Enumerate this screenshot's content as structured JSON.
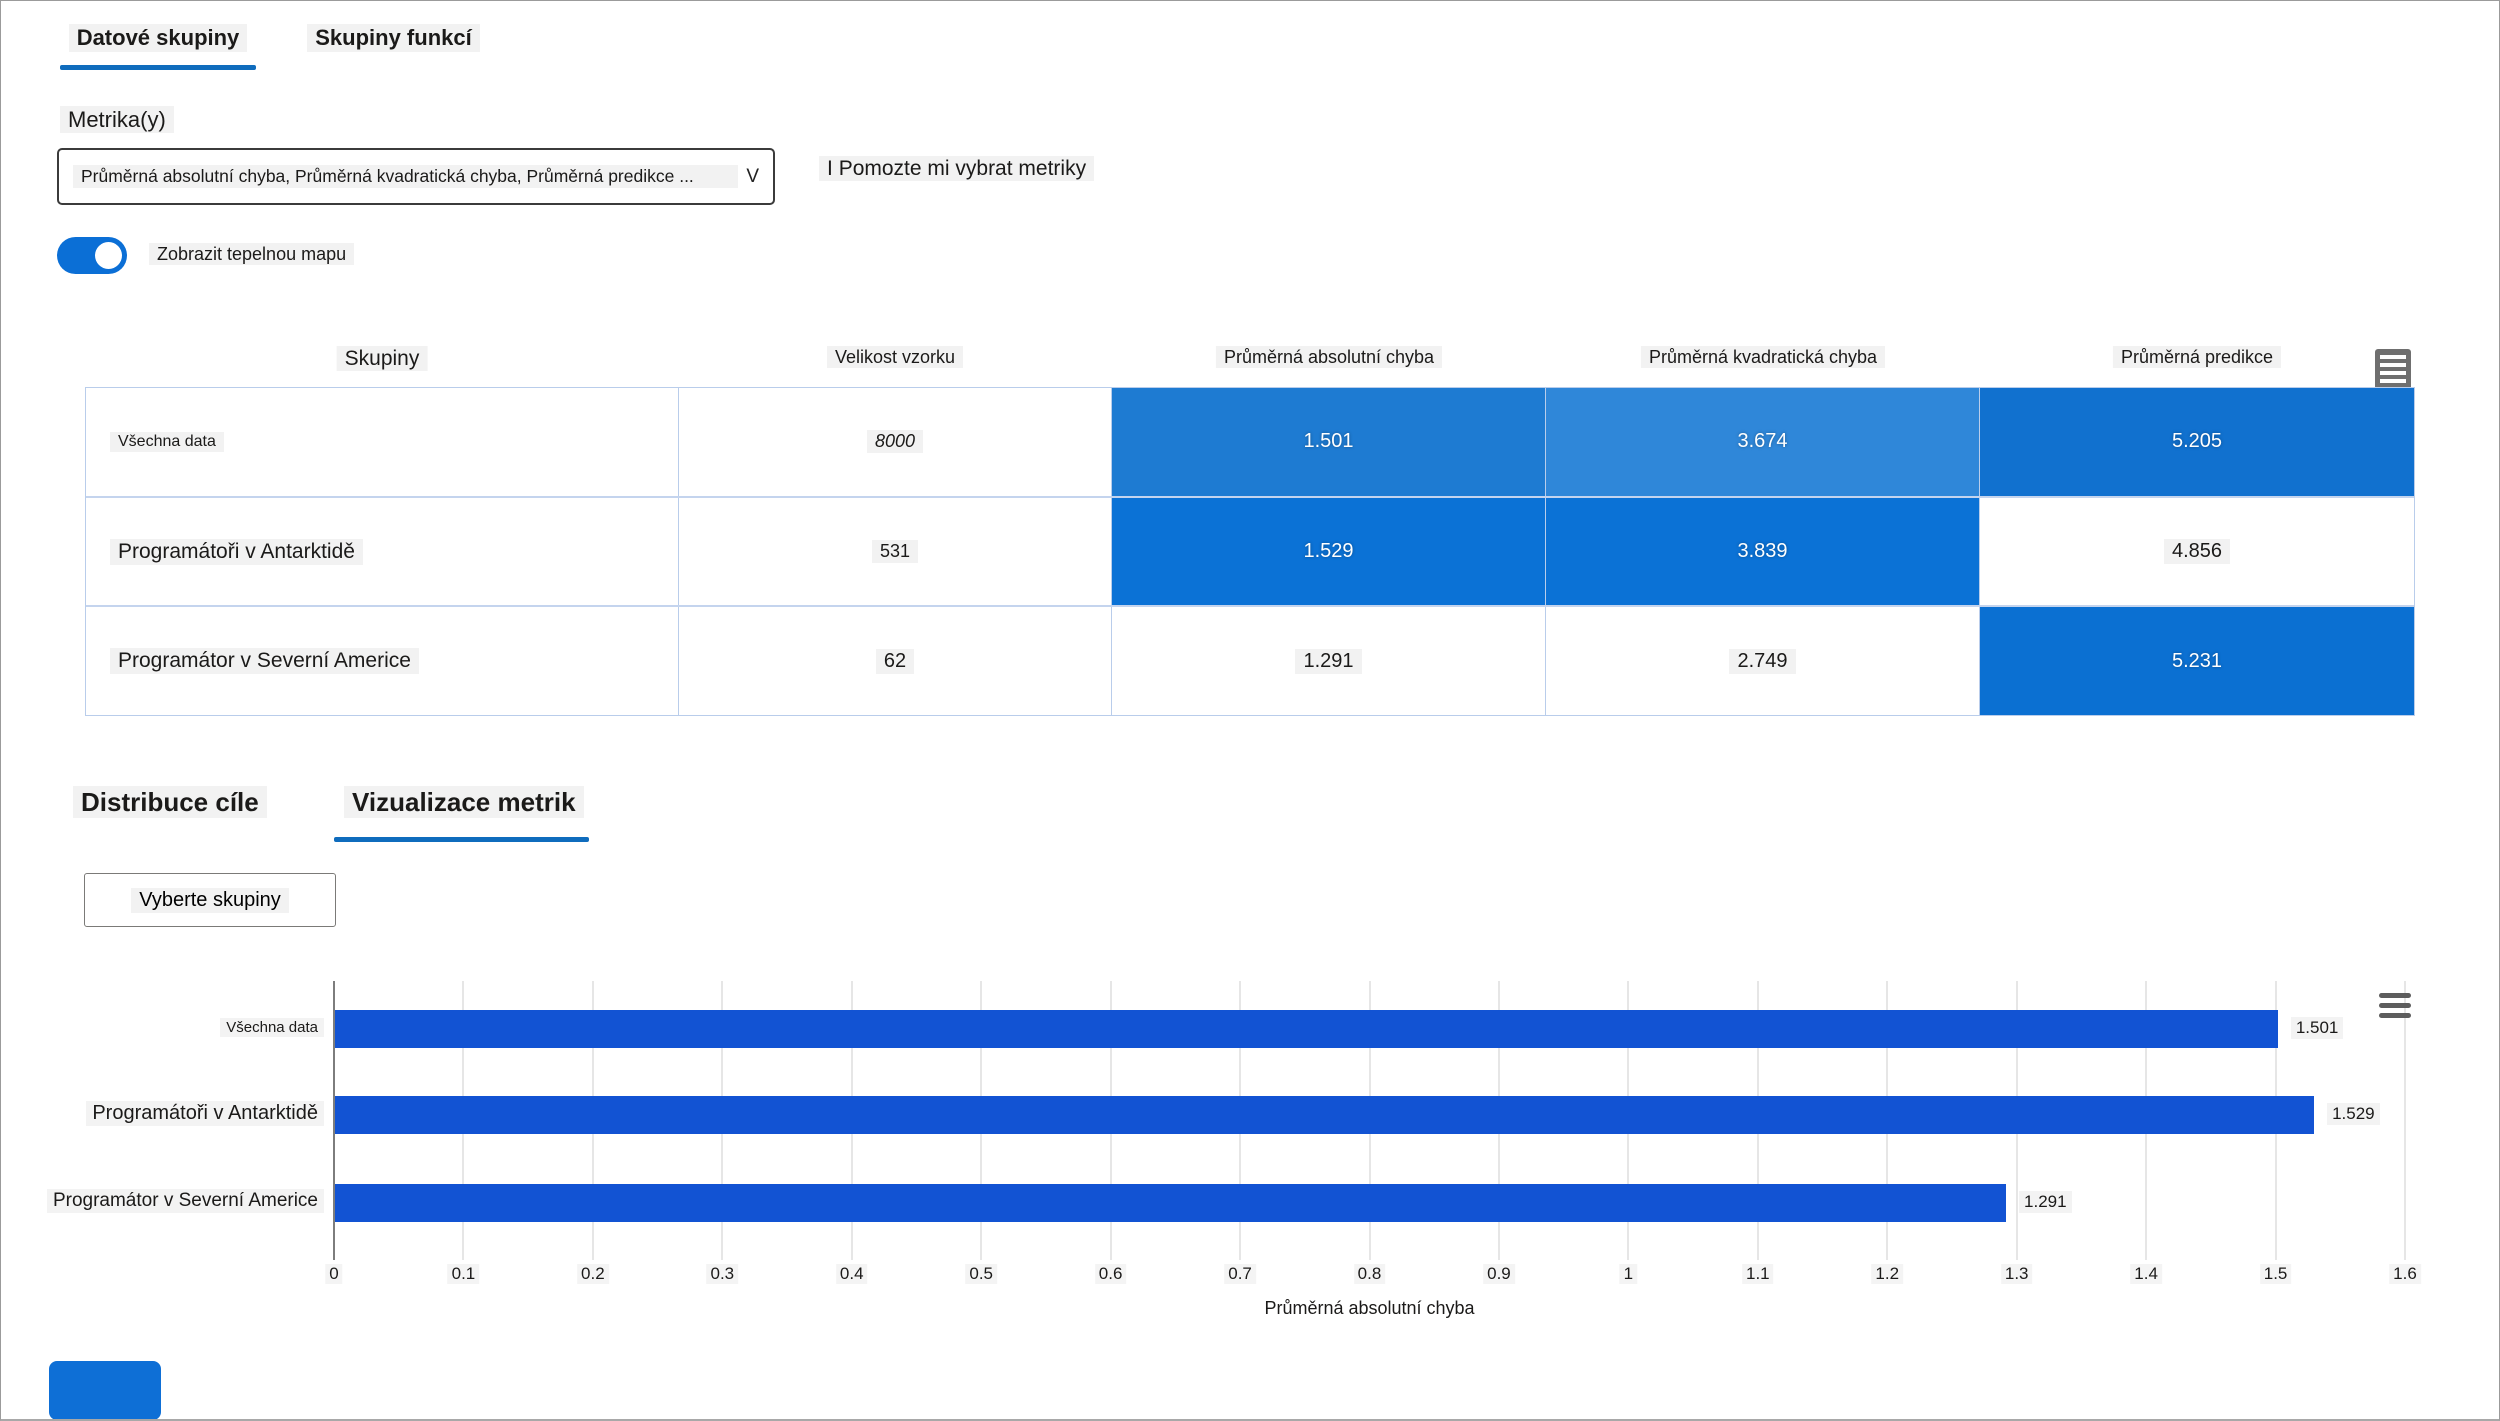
{
  "colors": {
    "accent": "#0f6cbd",
    "toggle_on": "#0b6fd6",
    "bar": "#1253d3",
    "table_border": "#b9cdeb"
  },
  "top_tabs": {
    "items": [
      {
        "label": "Datové skupiny",
        "selected": true
      },
      {
        "label": "Skupiny funkcí",
        "selected": false
      }
    ]
  },
  "metrics": {
    "label": "Metrika(y)",
    "value": "Průměrná absolutní chyba, Průměrná kvadratická chyba, Průměrná predikce ...",
    "chevron": "V",
    "help_icon": "I",
    "help_label": "Pomozte mi vybrat metriky"
  },
  "heatmap_toggle": {
    "label": "Zobrazit tepelnou mapu",
    "state": "on"
  },
  "table": {
    "columns": [
      "Skupiny",
      "Velikost vzorku",
      "Průměrná absolutní chyba",
      "Průměrná kvadratická chyba",
      "Průměrná predikce"
    ],
    "rows": [
      {
        "label": "Všechna data",
        "size": "8000",
        "metrics": [
          {
            "value": "1.501",
            "bg": "#1e7bd2",
            "white": true
          },
          {
            "value": "3.674",
            "bg": "#2f87d9",
            "white": true
          },
          {
            "value": "5.205",
            "bg": "#1171cf",
            "white": true
          }
        ]
      },
      {
        "label": "Programátoři v Antarktidě",
        "size": "531",
        "metrics": [
          {
            "value": "1.529",
            "bg": "#0b72d6",
            "white": true
          },
          {
            "value": "3.839",
            "bg": "#0b72d6",
            "white": true
          },
          {
            "value": "4.856",
            "bg": "#ffffff",
            "white": false
          }
        ]
      },
      {
        "label": "Programátor v Severní Americe",
        "size": "62",
        "metrics": [
          {
            "value": "1.291",
            "bg": "#ffffff",
            "white": false
          },
          {
            "value": "2.749",
            "bg": "#ffffff",
            "white": false
          },
          {
            "value": "5.231",
            "bg": "#0b70d2",
            "white": true
          }
        ]
      }
    ]
  },
  "bottom_tabs": {
    "items": [
      {
        "label": "Distribuce cíle",
        "selected": false
      },
      {
        "label": "Vizualizace metrik",
        "selected": true
      }
    ]
  },
  "cohort_button": {
    "label": "Vyberte skupiny"
  },
  "chart_data": {
    "type": "bar",
    "orientation": "horizontal",
    "title": "",
    "categories": [
      "Všechna data",
      "Programátoři v Antarktidě",
      "Programátor v Severní Americe"
    ],
    "values": [
      1.501,
      1.529,
      1.291
    ],
    "value_labels": [
      "1.501",
      "1.529",
      "1.291"
    ],
    "xlabel": "Průměrná absolutní chyba",
    "ylabel": "",
    "xlim": [
      0,
      1.6
    ],
    "xticks": [
      "0",
      "0.1",
      "0.2",
      "0.3",
      "0.4",
      "0.5",
      "0.6",
      "0.7",
      "0.8",
      "0.9",
      "1",
      "1.1",
      "1.2",
      "1.3",
      "1.4",
      "1.5",
      "1.6"
    ],
    "grid": true,
    "legend": "none",
    "bar_color": "#1253d3"
  }
}
